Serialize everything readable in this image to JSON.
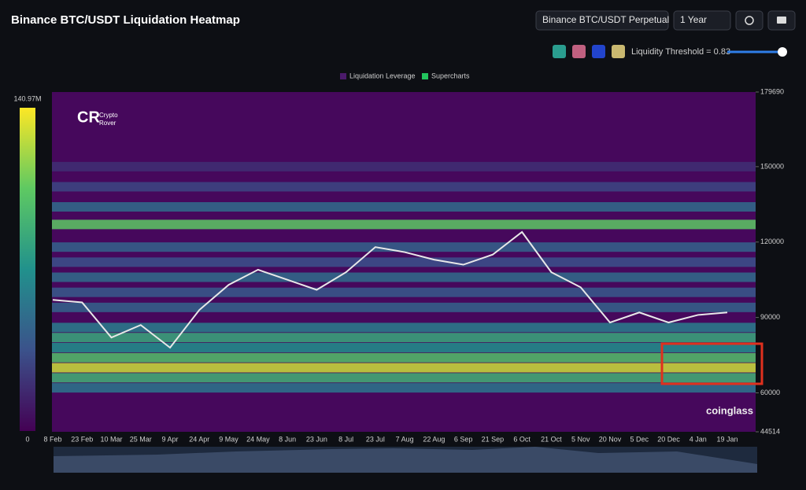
{
  "header": {
    "title": "Binance BTC/USDT Liquidation Heatmap",
    "pair_select": "Binance BTC/USDT Perpetual",
    "range_select": "1 Year",
    "threshold_label": "Liquidity Threshold = 0.83"
  },
  "watermarks": {
    "brand_top": "Crypto",
    "brand_bottom": "Rover",
    "source": "coinglass"
  },
  "chart_data": {
    "type": "heatmap",
    "legend": [
      "Liquidation Leverage",
      "Supercharts"
    ],
    "legend_colors": [
      "#4b1a6b",
      "#22c55e"
    ],
    "categories": [
      "8 Feb",
      "23 Feb",
      "10 Mar",
      "25 Mar",
      "9 Apr",
      "24 Apr",
      "9 May",
      "24 May",
      "8 Jun",
      "23 Jun",
      "8 Jul",
      "23 Jul",
      "7 Aug",
      "22 Aug",
      "6 Sep",
      "21 Sep",
      "6 Oct",
      "21 Oct",
      "5 Nov",
      "20 Nov",
      "5 Dec",
      "20 Dec",
      "4 Jan",
      "19 Jan"
    ],
    "series": [
      {
        "name": "BTC/USDT",
        "color": "#e8e8e8",
        "values": [
          97000,
          96000,
          82000,
          87000,
          78000,
          93000,
          103000,
          109000,
          105000,
          101000,
          108000,
          118000,
          116000,
          113000,
          111000,
          115000,
          124000,
          108000,
          102000,
          88000,
          92000,
          88000,
          91000,
          92000
        ]
      }
    ],
    "levels": [
      62000,
      66000,
      70000,
      74000,
      78000,
      82000,
      86000,
      94000,
      100000,
      106000,
      112000,
      118000,
      127000,
      134000,
      142000,
      150000
    ],
    "intensity": [
      55000000,
      90000000,
      130000000,
      100000000,
      70000000,
      85000000,
      60000000,
      45000000,
      40000000,
      50000000,
      35000000,
      45000000,
      105000000,
      50000000,
      30000000,
      20000000
    ],
    "ylim": [
      44514,
      179690
    ],
    "yticks": [
      44514,
      60000,
      90000,
      120000,
      150000,
      179690
    ],
    "colorbar": {
      "lim": [
        0,
        140970000
      ],
      "ticks": [
        0,
        {
          "value": 140970000,
          "label": "140.97M"
        }
      ]
    }
  }
}
